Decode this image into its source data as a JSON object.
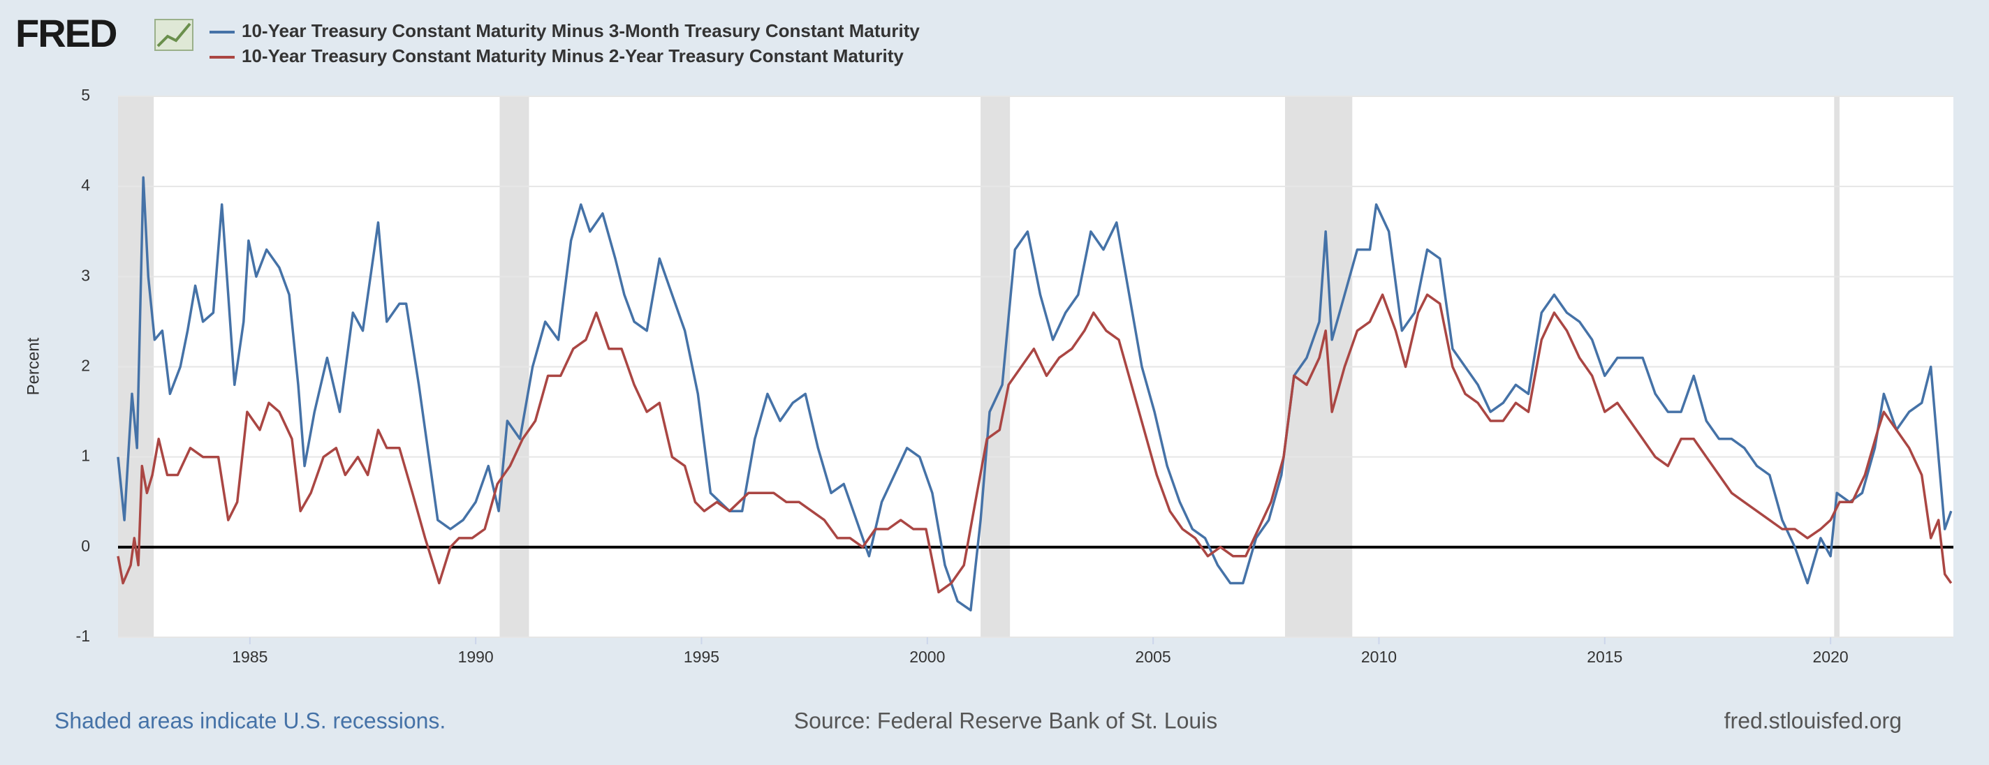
{
  "chart_data": {
    "type": "line",
    "logo": "FRED",
    "y_label": "Percent",
    "note": "Shaded areas indicate U.S. recessions.",
    "source": "Source: Federal Reserve Bank of St. Louis",
    "site": "fred.stlouisfed.org",
    "xlim": [
      1982.08,
      2022.72
    ],
    "xticks": [
      1985,
      1990,
      1995,
      2000,
      2005,
      2010,
      2015,
      2020
    ],
    "ylim": [
      -1,
      5
    ],
    "yticks": [
      -1,
      0,
      1,
      2,
      3,
      4,
      5
    ],
    "grid": true,
    "recession_color": "#e1e1e1",
    "recessions": [
      {
        "start": 1982.08,
        "end": 1982.87
      },
      {
        "start": 1990.53,
        "end": 1991.18
      },
      {
        "start": 2001.18,
        "end": 2001.83
      },
      {
        "start": 2007.92,
        "end": 2009.41
      },
      {
        "start": 2020.08,
        "end": 2020.2
      }
    ],
    "series": [
      {
        "name": "10-Year Treasury Constant Maturity Minus 3-Month Treasury Constant Maturity",
        "color": "#4572a7",
        "x": [
          1982.08,
          1982.22,
          1982.39,
          1982.5,
          1982.64,
          1982.75,
          1982.89,
          1983.06,
          1983.23,
          1983.46,
          1983.62,
          1983.79,
          1983.96,
          1984.19,
          1984.38,
          1984.52,
          1984.66,
          1984.86,
          1984.97,
          1985.14,
          1985.37,
          1985.65,
          1985.87,
          1986.07,
          1986.21,
          1986.43,
          1986.71,
          1986.99,
          1987.28,
          1987.5,
          1987.84,
          1988.03,
          1988.31,
          1988.46,
          1988.74,
          1989.16,
          1989.44,
          1989.72,
          1990.0,
          1990.28,
          1990.51,
          1990.7,
          1990.98,
          1991.26,
          1991.54,
          1991.83,
          1992.11,
          1992.33,
          1992.53,
          1992.81,
          1993.09,
          1993.29,
          1993.51,
          1993.79,
          1994.07,
          1994.35,
          1994.63,
          1994.92,
          1995.2,
          1995.62,
          1995.9,
          1996.18,
          1996.46,
          1996.74,
          1997.02,
          1997.3,
          1997.58,
          1997.87,
          1998.15,
          1998.43,
          1998.71,
          1998.99,
          1999.27,
          1999.55,
          1999.83,
          2000.11,
          2000.39,
          2000.67,
          2000.96,
          2001.18,
          2001.38,
          2001.66,
          2001.94,
          2002.22,
          2002.5,
          2002.78,
          2003.06,
          2003.34,
          2003.62,
          2003.9,
          2004.19,
          2004.47,
          2004.75,
          2005.03,
          2005.31,
          2005.59,
          2005.87,
          2006.15,
          2006.43,
          2006.71,
          2006.99,
          2007.28,
          2007.56,
          2007.84,
          2008.12,
          2008.4,
          2008.68,
          2008.82,
          2008.96,
          2009.24,
          2009.52,
          2009.8,
          2009.94,
          2010.22,
          2010.51,
          2010.79,
          2011.07,
          2011.35,
          2011.63,
          2011.91,
          2012.19,
          2012.47,
          2012.75,
          2013.03,
          2013.31,
          2013.6,
          2013.88,
          2014.16,
          2014.44,
          2014.72,
          2015.0,
          2015.28,
          2015.56,
          2015.84,
          2016.12,
          2016.4,
          2016.69,
          2016.97,
          2017.25,
          2017.53,
          2017.81,
          2018.09,
          2018.37,
          2018.65,
          2018.93,
          2019.21,
          2019.49,
          2019.78,
          2020.0,
          2020.14,
          2020.42,
          2020.7,
          2020.98,
          2021.18,
          2021.46,
          2021.74,
          2022.02,
          2022.22,
          2022.39,
          2022.53,
          2022.67
        ],
        "values": [
          1.0,
          0.3,
          1.7,
          1.1,
          4.1,
          3.0,
          2.3,
          2.4,
          1.7,
          2.0,
          2.4,
          2.9,
          2.5,
          2.6,
          3.8,
          2.8,
          1.8,
          2.5,
          3.4,
          3.0,
          3.3,
          3.1,
          2.8,
          1.8,
          0.9,
          1.5,
          2.1,
          1.5,
          2.6,
          2.4,
          3.6,
          2.5,
          2.7,
          2.7,
          1.8,
          0.3,
          0.2,
          0.3,
          0.5,
          0.9,
          0.4,
          1.4,
          1.2,
          2.0,
          2.5,
          2.3,
          3.4,
          3.8,
          3.5,
          3.7,
          3.2,
          2.8,
          2.5,
          2.4,
          3.2,
          2.8,
          2.4,
          1.7,
          0.6,
          0.4,
          0.4,
          1.2,
          1.7,
          1.4,
          1.6,
          1.7,
          1.1,
          0.6,
          0.7,
          0.3,
          -0.1,
          0.5,
          0.8,
          1.1,
          1.0,
          0.6,
          -0.2,
          -0.6,
          -0.7,
          0.3,
          1.5,
          1.8,
          3.3,
          3.5,
          2.8,
          2.3,
          2.6,
          2.8,
          3.5,
          3.3,
          3.6,
          2.8,
          2.0,
          1.5,
          0.9,
          0.5,
          0.2,
          0.1,
          -0.2,
          -0.4,
          -0.4,
          0.1,
          0.3,
          0.8,
          1.9,
          2.1,
          2.5,
          3.5,
          2.3,
          2.8,
          3.3,
          3.3,
          3.8,
          3.5,
          2.4,
          2.6,
          3.3,
          3.2,
          2.2,
          2.0,
          1.8,
          1.5,
          1.6,
          1.8,
          1.7,
          2.6,
          2.8,
          2.6,
          2.5,
          2.3,
          1.9,
          2.1,
          2.1,
          2.1,
          1.7,
          1.5,
          1.5,
          1.9,
          1.4,
          1.2,
          1.2,
          1.1,
          0.9,
          0.8,
          0.3,
          0.0,
          -0.4,
          0.1,
          -0.1,
          0.6,
          0.5,
          0.6,
          1.1,
          1.7,
          1.3,
          1.5,
          1.6,
          2.0,
          1.0,
          0.2,
          0.4
        ]
      },
      {
        "name": "10-Year Treasury Constant Maturity Minus 2-Year Treasury Constant Maturity",
        "color": "#aa4643",
        "x": [
          1982.08,
          1982.19,
          1982.36,
          1982.44,
          1982.53,
          1982.61,
          1982.72,
          1982.84,
          1982.98,
          1983.17,
          1983.4,
          1983.68,
          1983.96,
          1984.3,
          1984.52,
          1984.72,
          1984.94,
          1985.22,
          1985.42,
          1985.65,
          1985.93,
          1986.12,
          1986.35,
          1986.63,
          1986.91,
          1987.11,
          1987.39,
          1987.61,
          1987.84,
          1988.03,
          1988.31,
          1988.6,
          1988.88,
          1989.19,
          1989.44,
          1989.63,
          1989.92,
          1990.2,
          1990.48,
          1990.76,
          1991.04,
          1991.32,
          1991.6,
          1991.88,
          1992.16,
          1992.44,
          1992.67,
          1992.95,
          1993.23,
          1993.51,
          1993.79,
          1994.07,
          1994.35,
          1994.63,
          1994.86,
          1995.06,
          1995.34,
          1995.62,
          1996.04,
          1996.32,
          1996.6,
          1996.88,
          1997.16,
          1997.44,
          1997.72,
          1998.01,
          1998.29,
          1998.57,
          1998.85,
          1999.13,
          1999.41,
          1999.69,
          1999.97,
          2000.25,
          2000.53,
          2000.81,
          2001.1,
          2001.32,
          2001.6,
          2001.8,
          2002.08,
          2002.36,
          2002.64,
          2002.92,
          2003.2,
          2003.48,
          2003.68,
          2003.96,
          2004.24,
          2004.52,
          2004.8,
          2005.08,
          2005.37,
          2005.65,
          2005.93,
          2006.21,
          2006.49,
          2006.77,
          2007.05,
          2007.33,
          2007.61,
          2007.89,
          2008.12,
          2008.4,
          2008.68,
          2008.82,
          2008.96,
          2009.24,
          2009.52,
          2009.8,
          2010.08,
          2010.37,
          2010.59,
          2010.87,
          2011.07,
          2011.35,
          2011.63,
          2011.91,
          2012.19,
          2012.47,
          2012.75,
          2013.03,
          2013.31,
          2013.6,
          2013.88,
          2014.16,
          2014.44,
          2014.72,
          2015.0,
          2015.28,
          2015.56,
          2015.84,
          2016.12,
          2016.4,
          2016.69,
          2016.97,
          2017.25,
          2017.53,
          2017.81,
          2018.09,
          2018.37,
          2018.65,
          2018.93,
          2019.21,
          2019.49,
          2019.78,
          2020.0,
          2020.2,
          2020.48,
          2020.76,
          2021.05,
          2021.18,
          2021.46,
          2021.74,
          2022.02,
          2022.22,
          2022.39,
          2022.53,
          2022.67
        ],
        "values": [
          -0.1,
          -0.4,
          -0.2,
          0.1,
          -0.2,
          0.9,
          0.6,
          0.8,
          1.2,
          0.8,
          0.8,
          1.1,
          1.0,
          1.0,
          0.3,
          0.5,
          1.5,
          1.3,
          1.6,
          1.5,
          1.2,
          0.4,
          0.6,
          1.0,
          1.1,
          0.8,
          1.0,
          0.8,
          1.3,
          1.1,
          1.1,
          0.6,
          0.1,
          -0.4,
          0.0,
          0.1,
          0.1,
          0.2,
          0.7,
          0.9,
          1.2,
          1.4,
          1.9,
          1.9,
          2.2,
          2.3,
          2.6,
          2.2,
          2.2,
          1.8,
          1.5,
          1.6,
          1.0,
          0.9,
          0.5,
          0.4,
          0.5,
          0.4,
          0.6,
          0.6,
          0.6,
          0.5,
          0.5,
          0.4,
          0.3,
          0.1,
          0.1,
          0.0,
          0.2,
          0.2,
          0.3,
          0.2,
          0.2,
          -0.5,
          -0.4,
          -0.2,
          0.6,
          1.2,
          1.3,
          1.8,
          2.0,
          2.2,
          1.9,
          2.1,
          2.2,
          2.4,
          2.6,
          2.4,
          2.3,
          1.8,
          1.3,
          0.8,
          0.4,
          0.2,
          0.1,
          -0.1,
          0.0,
          -0.1,
          -0.1,
          0.2,
          0.5,
          1.0,
          1.9,
          1.8,
          2.1,
          2.4,
          1.5,
          2.0,
          2.4,
          2.5,
          2.8,
          2.4,
          2.0,
          2.6,
          2.8,
          2.7,
          2.0,
          1.7,
          1.6,
          1.4,
          1.4,
          1.6,
          1.5,
          2.3,
          2.6,
          2.4,
          2.1,
          1.9,
          1.5,
          1.6,
          1.4,
          1.2,
          1.0,
          0.9,
          1.2,
          1.2,
          1.0,
          0.8,
          0.6,
          0.5,
          0.4,
          0.3,
          0.2,
          0.2,
          0.1,
          0.2,
          0.3,
          0.5,
          0.5,
          0.8,
          1.3,
          1.5,
          1.3,
          1.1,
          0.8,
          0.1,
          0.3,
          -0.3,
          -0.4
        ]
      }
    ]
  }
}
